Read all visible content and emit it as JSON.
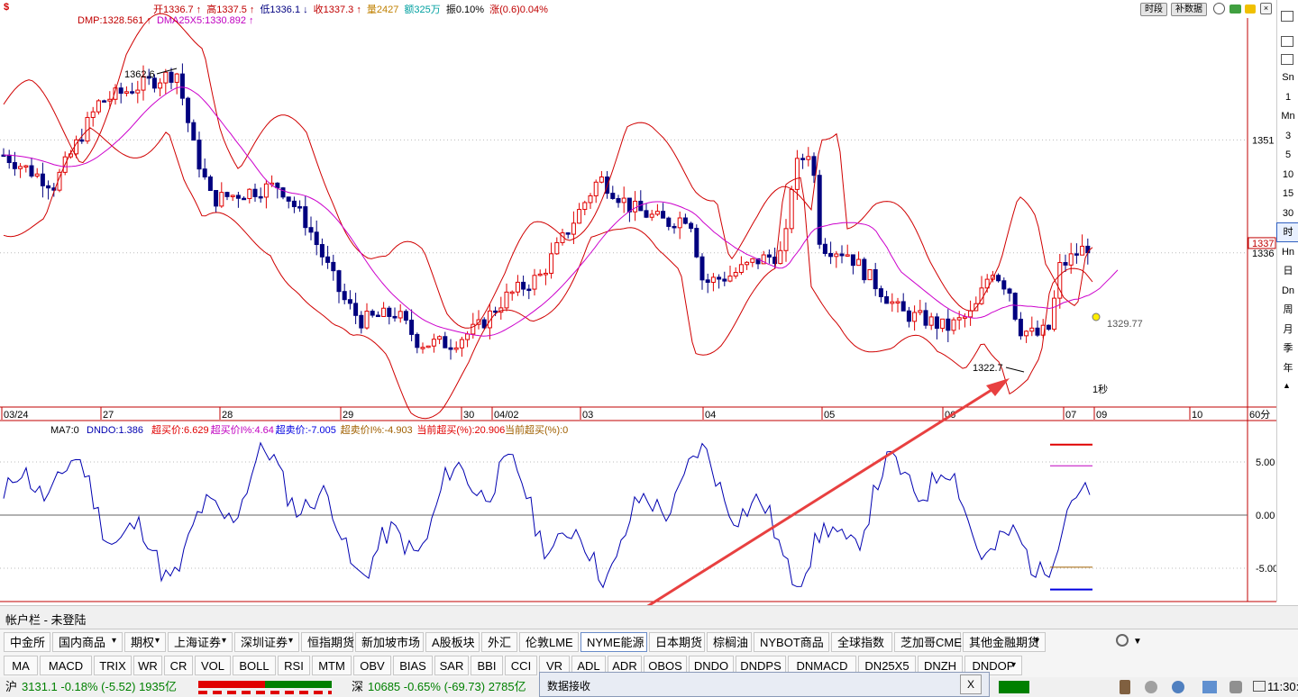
{
  "header": {
    "symbol_icon": "$",
    "open": "开1336.7",
    "high": "高1337.5",
    "low": "低1336.1",
    "close": "收1337.3",
    "volume": "量2427",
    "amount": "额325万",
    "amplitude": "振0.10%",
    "change": "涨(0.6)0.04%",
    "dmp": "DMP:1328.561",
    "dma": "DMA25X5:1330.892",
    "btn_time": "时段",
    "btn_fill": "补数据"
  },
  "main_chart": {
    "x_labels": [
      "03/24",
      "27",
      "28",
      "29",
      "30",
      "04/02",
      "03",
      "04",
      "05",
      "06",
      "07",
      "09",
      "10",
      "60分"
    ],
    "y_labels": [
      "1351",
      "1337",
      "1336"
    ],
    "annotations": {
      "high": "1362.6",
      "low": "1322.7",
      "projection": "1329.77",
      "countdown": "1秒"
    },
    "colors": {
      "up": "#e00000",
      "down": "#00007f",
      "band": "#d00000",
      "ma": "#cc00cc",
      "arrow": "#e84040"
    }
  },
  "sub_chart": {
    "legend": [
      "MA7:0",
      "DNDO:1.386",
      "超买价:6.629",
      "超买价I%:4.64",
      "超卖价:-7.005",
      "超卖价I%:-4.903",
      "当前超买(%):20.906",
      "当前超买(%):0"
    ],
    "y_labels": [
      "5.00",
      "0.00",
      "-5.00"
    ]
  },
  "right_bar": [
    "Sn",
    "1",
    "Mn",
    "3",
    "5",
    "10",
    "15",
    "30",
    "时",
    "Hn",
    "日",
    "Dn",
    "周",
    "月",
    "季",
    "年"
  ],
  "account": "帐户栏  -  未登陆",
  "market_tabs": [
    "中金所",
    "国内商品",
    "期权",
    "上海证券",
    "深圳证券",
    "恒指期货",
    "新加坡市场",
    "A股板块",
    "外汇",
    "伦敦LME",
    "NYME能源",
    "日本期货",
    "棕榈油",
    "NYBOT商品",
    "全球指数",
    "芝加哥CME",
    "其他金融期货"
  ],
  "indicator_tabs": [
    "MA",
    "MACD",
    "TRIX",
    "WR",
    "CR",
    "VOL",
    "BOLL",
    "RSI",
    "MTM",
    "OBV",
    "BIAS",
    "SAR",
    "BBI",
    "CCI",
    "VR",
    "ADL",
    "ADR",
    "OBOS",
    "DNDO",
    "DNDPS",
    "DNMACD",
    "DN25X5",
    "DNZH",
    "DNDOP"
  ],
  "status": {
    "sh_label": "沪",
    "sh_value": "3131.1 -0.18% (-5.52) 1935亿",
    "sz_label": "深",
    "sz_value": "10685 -0.65% (-69.73) 2785亿",
    "time": "11:30:18"
  },
  "popup": {
    "title": "数据接收",
    "close": "X"
  }
}
